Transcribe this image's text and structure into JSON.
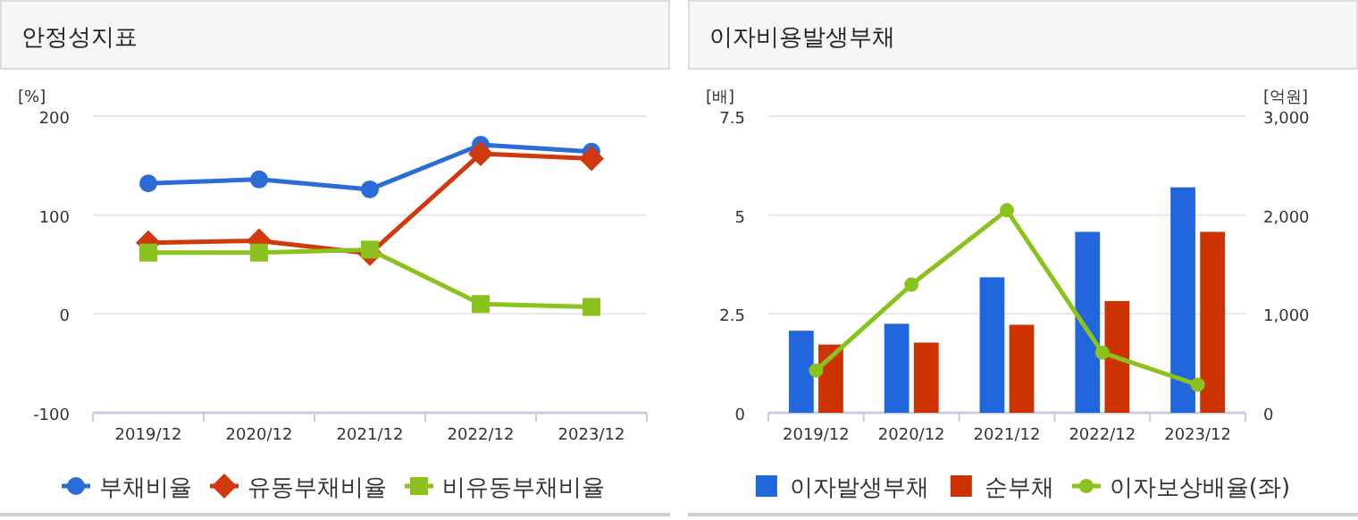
{
  "chart_data": [
    {
      "type": "line",
      "title": "안정성지표",
      "ylabel": "[%]",
      "categories": [
        "2019/12",
        "2020/12",
        "2021/12",
        "2022/12",
        "2023/12"
      ],
      "ylim": [
        -100,
        200
      ],
      "yticks": [
        -100,
        0,
        100,
        200
      ],
      "grid": "y",
      "legend": "bottom",
      "series": [
        {
          "name": "부채비율",
          "color": "#2b6cd6",
          "marker": "circle",
          "values": [
            132,
            136,
            126,
            171,
            164
          ]
        },
        {
          "name": "유동부채비율",
          "color": "#d2380e",
          "marker": "diamond",
          "values": [
            72,
            74,
            61,
            162,
            157
          ]
        },
        {
          "name": "비유동부채비율",
          "color": "#8cc21e",
          "marker": "square",
          "values": [
            62,
            62,
            65,
            10,
            7
          ]
        }
      ]
    },
    {
      "type": "bar",
      "title": "이자비용발생부채",
      "ylabel": "[배]",
      "y2label": "[억원]",
      "categories": [
        "2019/12",
        "2020/12",
        "2021/12",
        "2022/12",
        "2023/12"
      ],
      "ylim": [
        0,
        7.5
      ],
      "yticks": [
        0,
        2.5,
        5,
        7.5
      ],
      "y2lim": [
        0,
        3000
      ],
      "y2ticks": [
        0,
        {
          "value": 1000,
          "label": "1,000"
        },
        {
          "value": 2000,
          "label": "2,000"
        },
        {
          "value": 3000,
          "label": "3,000"
        }
      ],
      "grid": "y",
      "legend": "bottom",
      "series": [
        {
          "name": "이자발생부채",
          "axis": "y2",
          "color": "#2266dd",
          "values": [
            830,
            900,
            1370,
            1830,
            2280
          ]
        },
        {
          "name": "순부채",
          "axis": "y2",
          "color": "#cc3300",
          "values": [
            690,
            710,
            890,
            1130,
            1830
          ]
        },
        {
          "name": "이자보상배율(좌)",
          "type": "line",
          "axis": "y",
          "marker": "circle",
          "color": "#8cc21e",
          "values": [
            1.07,
            3.24,
            5.12,
            1.52,
            0.71
          ]
        }
      ]
    }
  ]
}
